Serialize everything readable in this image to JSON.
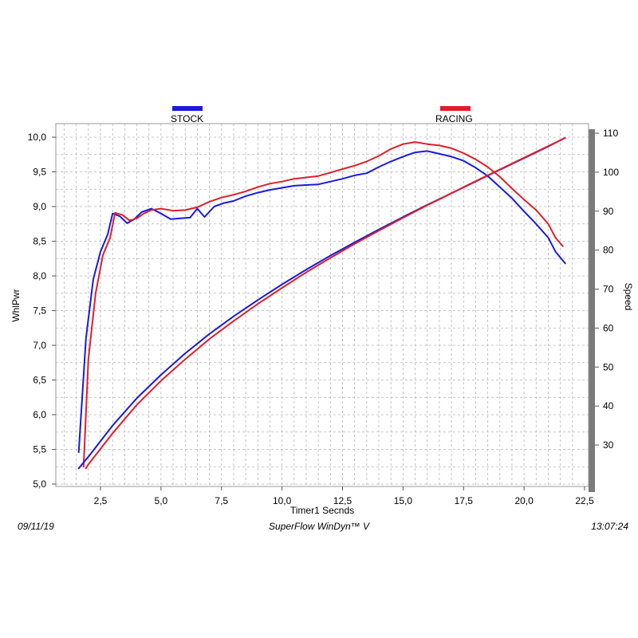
{
  "chart_data": {
    "type": "line",
    "x_axis": {
      "label": "Timer1 Secnds",
      "range": [
        0.5,
        22.5
      ],
      "ticks": [
        "2,5",
        "5,0",
        "7,5",
        "10,0",
        "12,5",
        "15,0",
        "17,5",
        "20,0",
        "22,5"
      ],
      "tick_values": [
        2.5,
        5.0,
        7.5,
        10.0,
        12.5,
        15.0,
        17.5,
        20.0,
        22.5
      ]
    },
    "y_axis_left": {
      "label": "WhlPwr",
      "range": [
        5.0,
        10.0
      ],
      "ticks": [
        "5,0",
        "5,5",
        "6,0",
        "6,5",
        "7,0",
        "7,5",
        "8,0",
        "8,5",
        "9,0",
        "9,5",
        "10,0"
      ],
      "tick_values": [
        5.0,
        5.5,
        6.0,
        6.5,
        7.0,
        7.5,
        8.0,
        8.5,
        9.0,
        9.5,
        10.0
      ]
    },
    "y_axis_right": {
      "label": "Speed",
      "range": [
        20,
        110
      ],
      "ticks": [
        "30",
        "40",
        "50",
        "60",
        "70",
        "80",
        "90",
        "100",
        "110"
      ],
      "tick_values": [
        30,
        40,
        50,
        60,
        70,
        80,
        90,
        100,
        110
      ]
    },
    "grid": true,
    "legend_placement": "top",
    "series": [
      {
        "name": "STOCK",
        "color": "#1a1adb",
        "axis": "left",
        "quantity": "WhlPwr",
        "x": [
          1.6,
          1.9,
          2.2,
          2.5,
          2.8,
          3.0,
          3.3,
          3.6,
          3.9,
          4.2,
          4.6,
          5.0,
          5.4,
          5.8,
          6.2,
          6.5,
          6.8,
          7.2,
          7.6,
          8.0,
          8.5,
          9.0,
          9.5,
          10.0,
          10.5,
          11.0,
          11.5,
          12.0,
          12.5,
          13.0,
          13.5,
          14.0,
          14.5,
          15.0,
          15.5,
          16.0,
          16.5,
          17.0,
          17.5,
          18.0,
          18.5,
          19.0,
          19.5,
          20.0,
          20.5,
          21.0,
          21.3,
          21.7
        ],
        "y": [
          5.46,
          7.1,
          7.95,
          8.35,
          8.6,
          8.9,
          8.86,
          8.76,
          8.82,
          8.92,
          8.97,
          8.9,
          8.82,
          8.83,
          8.84,
          8.97,
          8.85,
          9.0,
          9.05,
          9.08,
          9.15,
          9.2,
          9.24,
          9.27,
          9.3,
          9.31,
          9.32,
          9.36,
          9.4,
          9.45,
          9.48,
          9.57,
          9.65,
          9.72,
          9.78,
          9.8,
          9.76,
          9.72,
          9.66,
          9.56,
          9.44,
          9.28,
          9.12,
          8.93,
          8.75,
          8.55,
          8.35,
          8.18
        ]
      },
      {
        "name": "RACING",
        "color": "#dd1f2a",
        "axis": "left",
        "quantity": "WhlPwr",
        "x": [
          1.8,
          2.0,
          2.3,
          2.6,
          2.9,
          3.1,
          3.4,
          3.7,
          4.0,
          4.3,
          4.6,
          5.0,
          5.5,
          6.0,
          6.5,
          7.0,
          7.5,
          8.0,
          8.5,
          9.0,
          9.5,
          10.0,
          10.5,
          11.0,
          11.5,
          12.0,
          12.5,
          13.0,
          13.5,
          14.0,
          14.5,
          15.0,
          15.5,
          16.0,
          16.5,
          17.0,
          17.5,
          18.0,
          18.5,
          19.0,
          19.5,
          20.0,
          20.5,
          21.0,
          21.3,
          21.6
        ],
        "y": [
          5.25,
          6.8,
          7.75,
          8.3,
          8.55,
          8.91,
          8.88,
          8.8,
          8.83,
          8.9,
          8.95,
          8.97,
          8.94,
          8.95,
          8.99,
          9.07,
          9.13,
          9.17,
          9.22,
          9.28,
          9.33,
          9.36,
          9.4,
          9.42,
          9.44,
          9.49,
          9.54,
          9.59,
          9.65,
          9.73,
          9.83,
          9.9,
          9.93,
          9.9,
          9.88,
          9.84,
          9.77,
          9.68,
          9.57,
          9.43,
          9.26,
          9.1,
          8.95,
          8.75,
          8.55,
          8.43
        ]
      },
      {
        "name": "STOCK",
        "color": "#1a1adb",
        "axis": "right",
        "quantity": "Speed",
        "x": [
          1.6,
          2.0,
          3.0,
          4.0,
          5.0,
          6.0,
          7.0,
          8.0,
          9.0,
          10.0,
          11.0,
          12.0,
          13.0,
          14.0,
          15.0,
          16.0,
          17.0,
          18.0,
          19.0,
          20.0,
          21.0,
          21.7
        ],
        "y": [
          24,
          27,
          35,
          42,
          48,
          53.5,
          58.5,
          63,
          67.2,
          71.2,
          75,
          78.6,
          82,
          85.3,
          88.5,
          91.6,
          94.6,
          97.6,
          100.6,
          103.6,
          106.6,
          108.8
        ]
      },
      {
        "name": "RACING",
        "color": "#dd1f2a",
        "axis": "right",
        "quantity": "Speed",
        "x": [
          1.9,
          2.0,
          3.0,
          4.0,
          5.0,
          6.0,
          7.0,
          8.0,
          9.0,
          10.0,
          11.0,
          12.0,
          13.0,
          14.0,
          15.0,
          16.0,
          17.0,
          18.0,
          19.0,
          20.0,
          21.0,
          21.7
        ],
        "y": [
          24,
          25,
          33,
          40.3,
          46.5,
          52,
          57.2,
          61.8,
          66.2,
          70.3,
          74.3,
          78,
          81.6,
          85,
          88.3,
          91.5,
          94.6,
          97.7,
          100.7,
          103.7,
          106.7,
          108.8
        ]
      }
    ]
  },
  "legend": {
    "items": [
      "STOCK",
      "RACING"
    ]
  },
  "footer": {
    "date": "09/11/19",
    "app": "SuperFlow WinDyn™ V",
    "time": "13:07:24"
  }
}
